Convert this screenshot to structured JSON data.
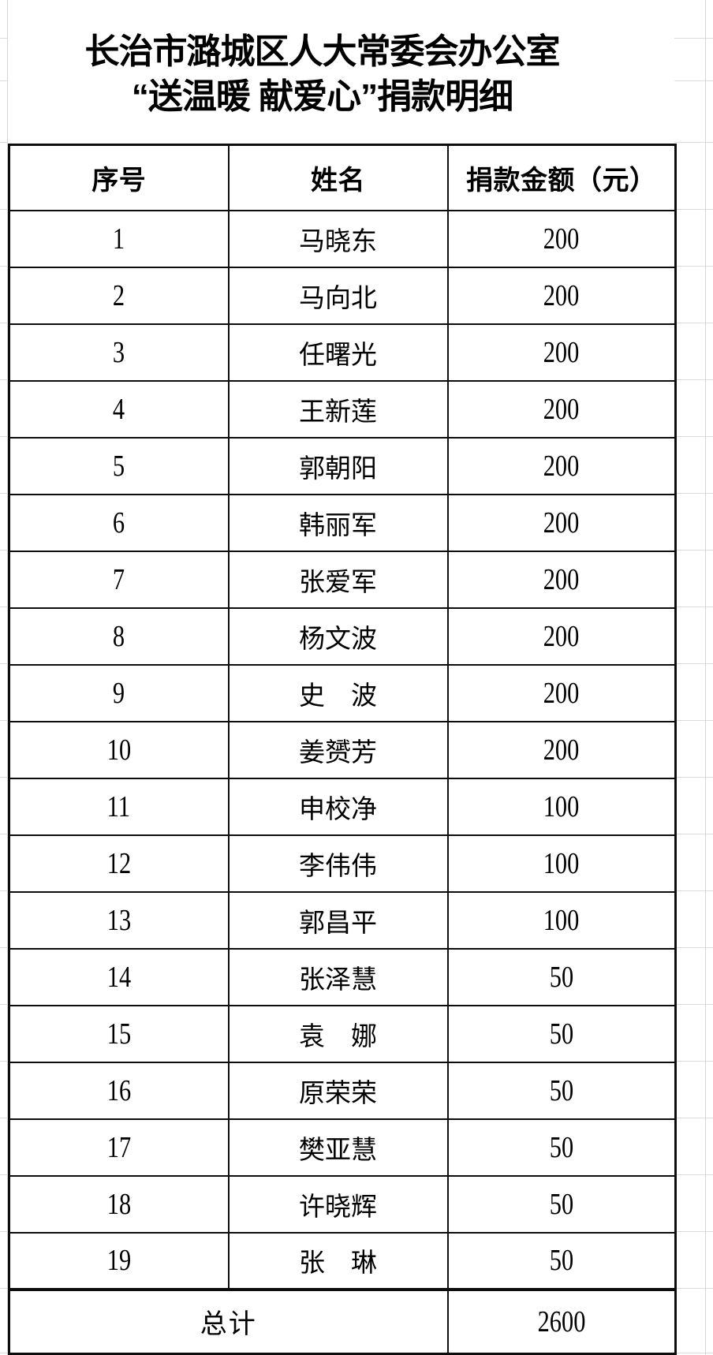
{
  "title": {
    "line1": "长治市潞城区人大常委会办公室",
    "line2": "“送温暖 献爱心”捐款明细"
  },
  "table": {
    "headers": [
      "序号",
      "姓名",
      "捐款金额（元）"
    ],
    "rows": [
      {
        "no": "1",
        "name": "马晓东",
        "amount": "200"
      },
      {
        "no": "2",
        "name": "马向北",
        "amount": "200"
      },
      {
        "no": "3",
        "name": "任曙光",
        "amount": "200"
      },
      {
        "no": "4",
        "name": "王新莲",
        "amount": "200"
      },
      {
        "no": "5",
        "name": "郭朝阳",
        "amount": "200"
      },
      {
        "no": "6",
        "name": "韩丽军",
        "amount": "200"
      },
      {
        "no": "7",
        "name": "张爱军",
        "amount": "200"
      },
      {
        "no": "8",
        "name": "杨文波",
        "amount": "200"
      },
      {
        "no": "9",
        "name": "史　波",
        "amount": "200"
      },
      {
        "no": "10",
        "name": "姜赟芳",
        "amount": "200"
      },
      {
        "no": "11",
        "name": "申校净",
        "amount": "100"
      },
      {
        "no": "12",
        "name": "李伟伟",
        "amount": "100"
      },
      {
        "no": "13",
        "name": "郭昌平",
        "amount": "100"
      },
      {
        "no": "14",
        "name": "张泽慧",
        "amount": "50"
      },
      {
        "no": "15",
        "name": "袁　娜",
        "amount": "50"
      },
      {
        "no": "16",
        "name": "原荣荣",
        "amount": "50"
      },
      {
        "no": "17",
        "name": "樊亚慧",
        "amount": "50"
      },
      {
        "no": "18",
        "name": "许晓辉",
        "amount": "50"
      },
      {
        "no": "19",
        "name": "张　琳",
        "amount": "50"
      }
    ],
    "total_label": "总计",
    "total_value": "2600"
  }
}
